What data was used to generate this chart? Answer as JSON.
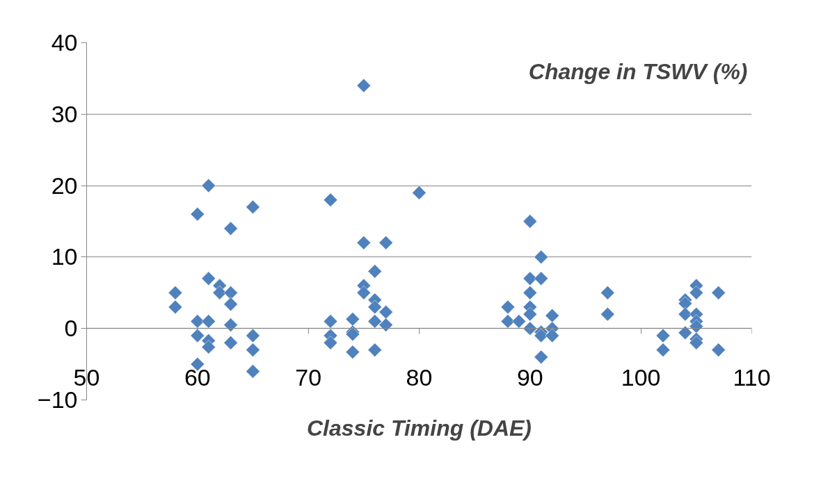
{
  "chart_data": {
    "type": "scatter",
    "xlabel": "Classic Timing (DAE)",
    "ylabel": "Change in TSWV (%)",
    "x": [
      58,
      58,
      60,
      60,
      60,
      60,
      61,
      61,
      61,
      61,
      61,
      62,
      62,
      63,
      63,
      63,
      63,
      63,
      65,
      65,
      65,
      65,
      72,
      72,
      72,
      72,
      74,
      74,
      74,
      74,
      75,
      75,
      75,
      75,
      76,
      76,
      76,
      76,
      76,
      77,
      77,
      77,
      80,
      88,
      88,
      89,
      90,
      90,
      90,
      90,
      90,
      90,
      91,
      91,
      91,
      91,
      91,
      92,
      92,
      92,
      97,
      97,
      102,
      102,
      104,
      104,
      104,
      104,
      105,
      105,
      105,
      105,
      105,
      105,
      105,
      107,
      107
    ],
    "series": [
      {
        "color": "#4f81bd",
        "values": [
          5,
          3,
          16,
          1,
          -1,
          -5,
          20,
          7,
          1,
          -1.7,
          -2.6,
          6,
          5,
          14,
          5,
          3.4,
          0.5,
          -2,
          17,
          -1,
          -3,
          -6,
          18,
          1,
          -1,
          -2,
          1.3,
          -0.5,
          -0.8,
          -3.3,
          34,
          12,
          6,
          5,
          8,
          4,
          3,
          1,
          -3,
          12,
          2.3,
          0.5,
          19,
          3,
          1,
          1,
          15,
          7,
          5,
          3,
          2,
          0,
          10,
          7,
          -0.5,
          -1,
          -4,
          1.8,
          0,
          -1,
          5,
          2,
          -1,
          -3,
          4,
          3.5,
          2,
          -0.6,
          6,
          5,
          2,
          1,
          0.3,
          -1.5,
          -2,
          5,
          -3
        ]
      }
    ],
    "xlim": [
      50,
      110
    ],
    "ylim": [
      -10,
      40
    ],
    "xticks": [
      50,
      60,
      70,
      80,
      90,
      100,
      110
    ],
    "yticks": [
      -10,
      0,
      10,
      20,
      30,
      40
    ],
    "grid": "y",
    "marker": "diamond"
  }
}
